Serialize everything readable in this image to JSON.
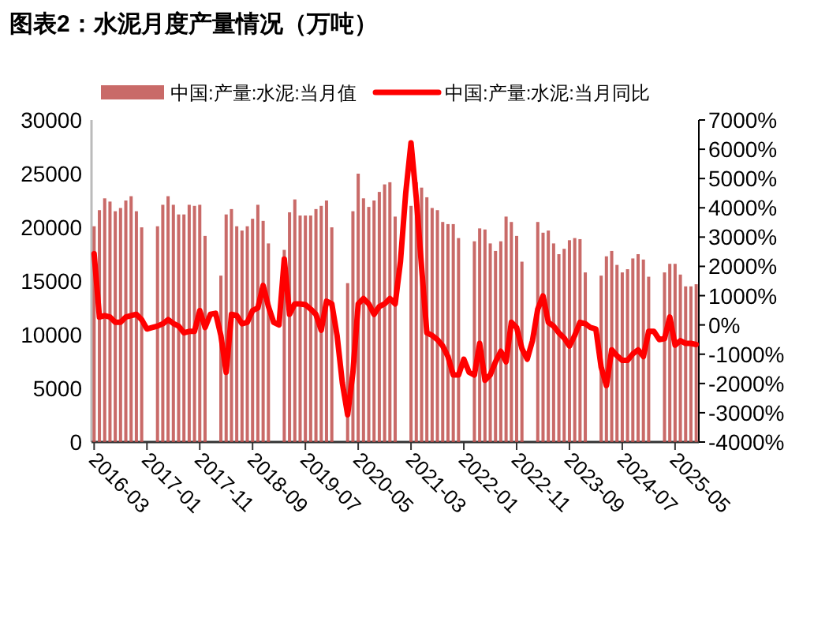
{
  "chart_data": {
    "type": "bar",
    "title": "图表2：水泥月度产量情况（万吨）",
    "categories": [
      "2016-03",
      null,
      null,
      null,
      null,
      null,
      null,
      null,
      null,
      null,
      "2017-01",
      null,
      null,
      null,
      null,
      null,
      null,
      null,
      null,
      null,
      "2017-11",
      null,
      null,
      null,
      null,
      null,
      null,
      null,
      null,
      null,
      "2018-09",
      null,
      null,
      null,
      null,
      null,
      null,
      null,
      null,
      null,
      "2019-07",
      null,
      null,
      null,
      null,
      null,
      null,
      null,
      null,
      null,
      "2020-05",
      null,
      null,
      null,
      null,
      null,
      null,
      null,
      null,
      null,
      "2021-03",
      null,
      null,
      null,
      null,
      null,
      null,
      null,
      null,
      null,
      "2022-01",
      null,
      null,
      null,
      null,
      null,
      null,
      null,
      null,
      null,
      "2022-11",
      null,
      null,
      null,
      null,
      null,
      null,
      null,
      null,
      null,
      "2023-09",
      null,
      null,
      null,
      null,
      null,
      null,
      null,
      null,
      null,
      "2024-07",
      null,
      null,
      null,
      null,
      null,
      null,
      null,
      null,
      null,
      "2025-05",
      null,
      null,
      null,
      null
    ],
    "series": [
      {
        "name": "中国:产量:水泥:当月值",
        "color": "#c0504d",
        "values": [
          20100,
          21600,
          22700,
          22400,
          21500,
          21800,
          22500,
          22900,
          21500,
          20000,
          null,
          null,
          20100,
          22100,
          22900,
          22100,
          21200,
          21200,
          22100,
          22000,
          22100,
          19200,
          null,
          null,
          15500,
          21200,
          21700,
          20100,
          19700,
          20100,
          20800,
          22100,
          20600,
          18500,
          null,
          null,
          17900,
          21400,
          22600,
          21100,
          21100,
          21100,
          21700,
          22000,
          22500,
          20000,
          null,
          null,
          14800,
          21500,
          25000,
          22700,
          21900,
          22500,
          23300,
          24000,
          24200,
          21000,
          null,
          null,
          22000,
          24200,
          23700,
          22800,
          21800,
          21600,
          20500,
          20300,
          20300,
          19000,
          null,
          null,
          18700,
          19900,
          19800,
          18500,
          17800,
          18700,
          21000,
          20500,
          19200,
          16800,
          null,
          null,
          20500,
          19500,
          19700,
          18500,
          17500,
          18000,
          18800,
          19000,
          18900,
          15800,
          null,
          null,
          15500,
          17300,
          17800,
          16500,
          15800,
          16100,
          17100,
          17500,
          17000,
          15400,
          null,
          null,
          15800,
          16600,
          16600,
          15600,
          14500,
          14500,
          14700
        ]
      },
      {
        "name": "中国:产量:水泥:当月同比",
        "type": "line",
        "axis": "y2",
        "color": "#ff0000",
        "values": [
          2430,
          270,
          320,
          270,
          90,
          90,
          270,
          320,
          360,
          180,
          -140,
          -90,
          -40,
          40,
          180,
          50,
          -40,
          -270,
          -220,
          -220,
          490,
          -90,
          360,
          400,
          -360,
          -1620,
          360,
          320,
          40,
          90,
          490,
          580,
          1350,
          630,
          90,
          0,
          2250,
          360,
          720,
          720,
          690,
          540,
          360,
          -180,
          810,
          720,
          -360,
          -1980,
          -3070,
          -1620,
          720,
          900,
          720,
          360,
          630,
          720,
          900,
          720,
          2160,
          4510,
          6220,
          4330,
          1980,
          -270,
          -360,
          -500,
          -720,
          -1080,
          -1710,
          -1710,
          -1170,
          -1620,
          -1710,
          -630,
          -1890,
          -1710,
          -1260,
          -900,
          -1260,
          90,
          -90,
          -810,
          -1170,
          -540,
          540,
          990,
          90,
          -40,
          -270,
          -450,
          -720,
          -360,
          90,
          40,
          -90,
          -140,
          -1440,
          -2070,
          -850,
          -1050,
          -1210,
          -1210,
          -990,
          -850,
          -1080,
          -220,
          -220,
          -500,
          -470,
          270,
          -690,
          -540,
          -630,
          -630,
          -670
        ]
      }
    ],
    "ylim": [
      0,
      30000
    ],
    "yticks": [
      0,
      5000,
      10000,
      15000,
      20000,
      25000,
      30000
    ],
    "y2lim": [
      -4000,
      7000
    ],
    "y2ticks": [
      {
        "value": -4000,
        "label": "-4000%"
      },
      {
        "value": -3000,
        "label": "-3000%"
      },
      {
        "value": -2000,
        "label": "-2000%"
      },
      {
        "value": -1000,
        "label": "-1000%"
      },
      {
        "value": 0,
        "label": "0%"
      },
      {
        "value": 1000,
        "label": "1000%"
      },
      {
        "value": 2000,
        "label": "2000%"
      },
      {
        "value": 3000,
        "label": "3000%"
      },
      {
        "value": 4000,
        "label": "4000%"
      },
      {
        "value": 5000,
        "label": "5000%"
      },
      {
        "value": 6000,
        "label": "6000%"
      },
      {
        "value": 7000,
        "label": "7000%"
      }
    ],
    "legend": "top",
    "grid": false,
    "line_style": "solid"
  }
}
